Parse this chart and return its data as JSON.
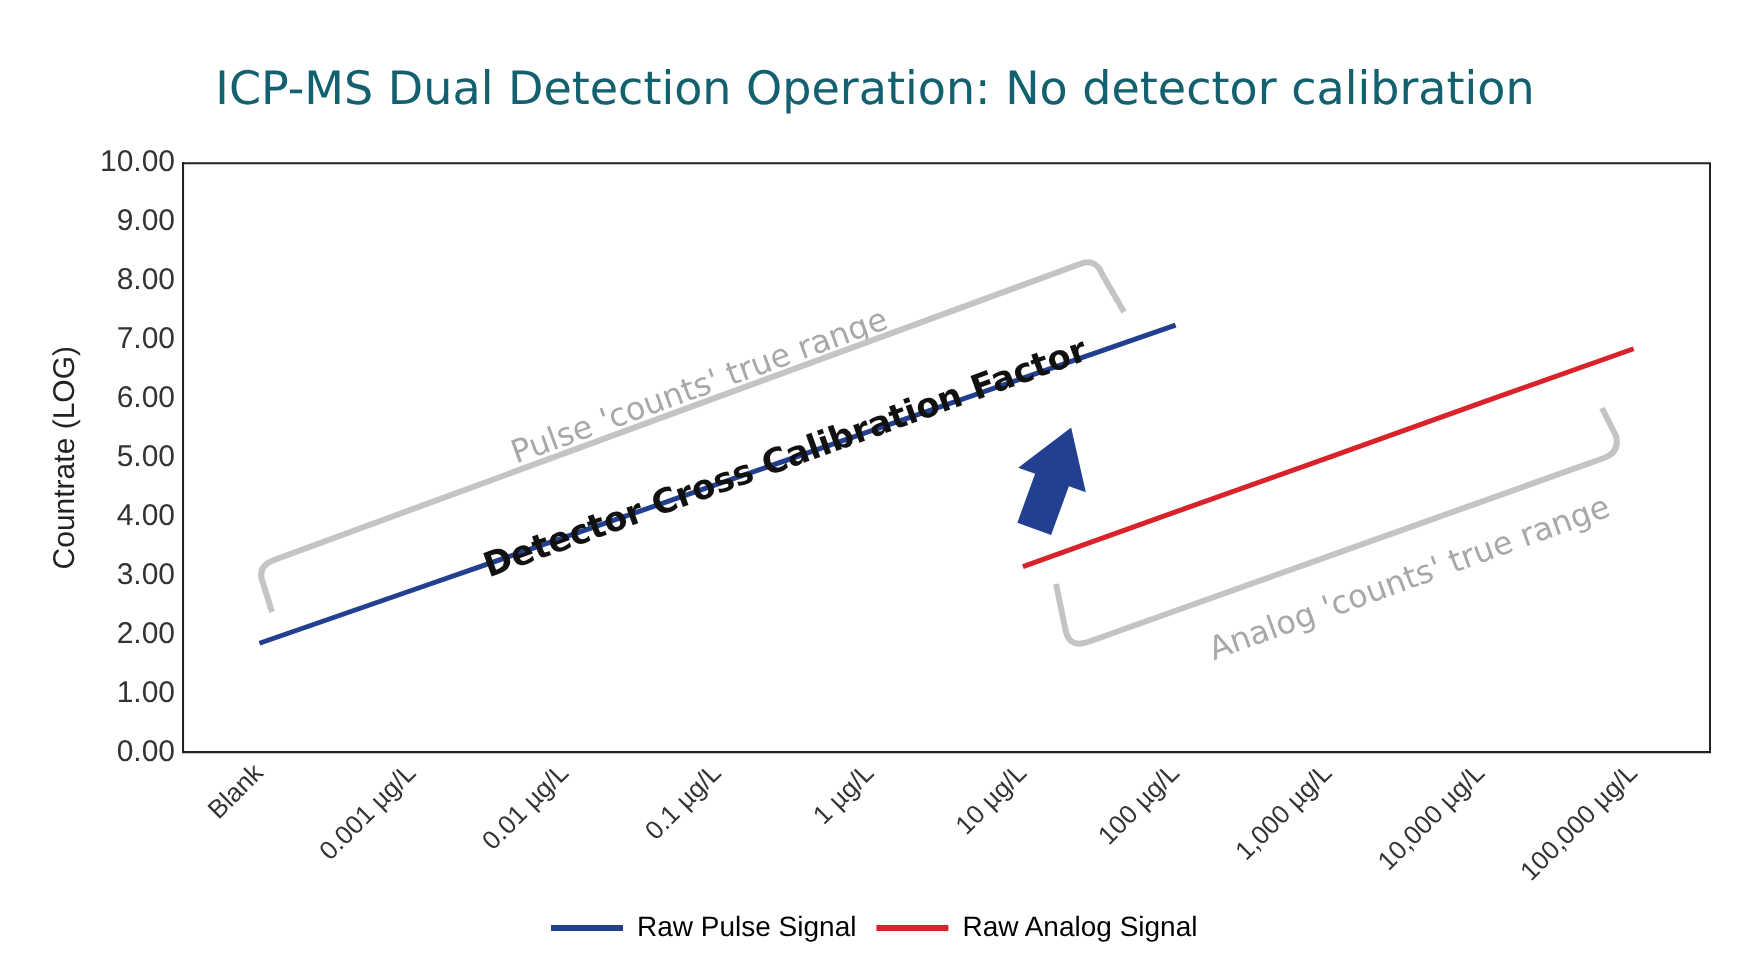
{
  "chart_data": {
    "type": "line",
    "title": "ICP-MS Dual Detection Operation: No detector calibration",
    "ylabel": "Countrate (LOG)",
    "categories": [
      "Blank",
      "0.001 µg/L",
      "0.01 µg/L",
      "0.1 µg/L",
      "1 µg/L",
      "10 µg/L",
      "100 µg/L",
      "1,000 µg/L",
      "10,000 µg/L",
      "100,000 µg/L"
    ],
    "series": [
      {
        "name": "Raw Pulse Signal",
        "color": "#22408f",
        "values": [
          1.85,
          2.75,
          3.65,
          4.55,
          5.45,
          6.35,
          7.25,
          null,
          null,
          null
        ]
      },
      {
        "name": "Raw Analog Signal",
        "color": "#d8232a",
        "values": [
          null,
          null,
          null,
          null,
          null,
          3.15,
          4.08,
          5.0,
          5.93,
          6.85
        ]
      }
    ],
    "ylim": [
      0,
      10
    ],
    "yticks": [
      {
        "value": 0,
        "label": "0.00"
      },
      {
        "value": 1,
        "label": "1.00"
      },
      {
        "value": 2,
        "label": "2.00"
      },
      {
        "value": 3,
        "label": "3.00"
      },
      {
        "value": 4,
        "label": "4.00"
      },
      {
        "value": 5,
        "label": "5.00"
      },
      {
        "value": 6,
        "label": "6.00"
      },
      {
        "value": 7,
        "label": "7.00"
      },
      {
        "value": 8,
        "label": "8.00"
      },
      {
        "value": 9,
        "label": "9.00"
      },
      {
        "value": 10,
        "label": "10.00"
      }
    ],
    "grid": false,
    "legend": "bottom",
    "marker": "none",
    "line_style": "solid",
    "annotations": [
      "Pulse 'counts' true range",
      "Detector Cross Calibration Factor",
      "Analog 'counts' true range"
    ]
  }
}
